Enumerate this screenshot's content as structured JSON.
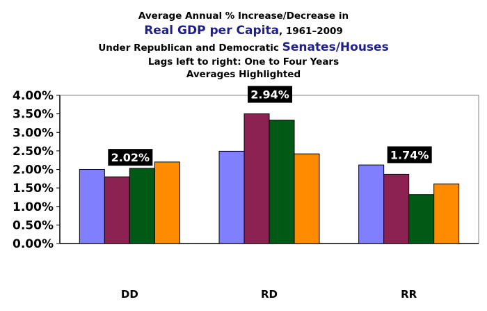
{
  "chart_data": {
    "type": "bar",
    "title_line1": "Average Annual % Increase/Decrease in",
    "title_line2_highlight": "Real GDP per Capita",
    "title_line2_rest": ", 1961–2009",
    "title_line3_prefix": "Under Republican and Democratic ",
    "title_line3_highlight": "Senates/Houses",
    "title_line4": "Lags left to right: One to Four Years",
    "title_line5": "Averages Highlighted",
    "categories": [
      "DD",
      "RD",
      "RR"
    ],
    "series_colors": [
      "#8080ff",
      "#8b2252",
      "#005a16",
      "#ff8c00"
    ],
    "values": [
      [
        2.0,
        1.8,
        2.03,
        2.2
      ],
      [
        2.49,
        3.5,
        3.33,
        2.42
      ],
      [
        2.12,
        1.87,
        1.32,
        1.61
      ]
    ],
    "averages": [
      "2.02%",
      "2.94%",
      "1.74%"
    ],
    "ylim": [
      0,
      4.0
    ],
    "yticks": [
      "0.00%",
      "0.50%",
      "1.00%",
      "1.50%",
      "2.00%",
      "2.50%",
      "3.00%",
      "3.50%",
      "4.00%"
    ],
    "grid": false
  }
}
